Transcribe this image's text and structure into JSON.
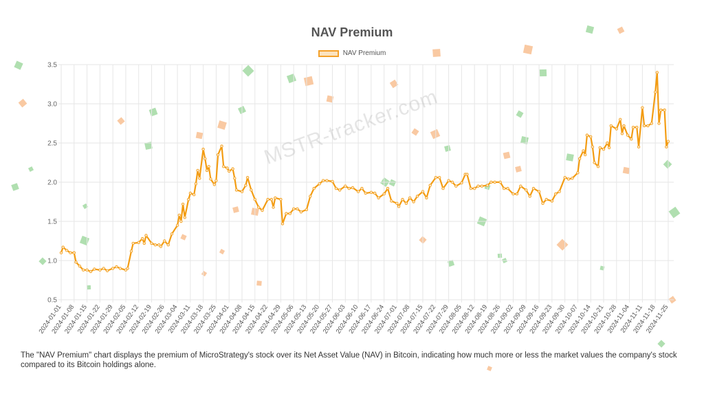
{
  "title": "NAV Premium",
  "watermark": "MSTR-tracker.com",
  "description": "The \"NAV Premium\" chart displays the premium of MicroStrategy's stock over its Net Asset Value (NAV) in Bitcoin, indicating how much more or less the market values the company's stock compared to its Bitcoin holdings alone.",
  "colors": {
    "line": "#f39c12",
    "fill": "#fbe3c0",
    "grid": "#e6e6e6",
    "confetti_green": "#8fd18f",
    "confetti_orange": "#f7b27a"
  },
  "chart_data": {
    "type": "line",
    "title": "NAV Premium",
    "legend": "top-center",
    "grid": true,
    "ylim": [
      0.5,
      3.5
    ],
    "yticks": [
      "0.5",
      "1.0",
      "1.5",
      "2.0",
      "2.5",
      "3.0",
      "3.5"
    ],
    "xticks": [
      "2024-01-01",
      "2024-01-08",
      "2024-01-15",
      "2024-01-22",
      "2024-01-29",
      "2024-02-05",
      "2024-02-12",
      "2024-02-19",
      "2024-02-26",
      "2024-03-04",
      "2024-03-11",
      "2024-03-18",
      "2024-03-25",
      "2024-04-01",
      "2024-04-08",
      "2024-04-15",
      "2024-04-22",
      "2024-04-29",
      "2024-05-06",
      "2024-05-13",
      "2024-05-20",
      "2024-05-27",
      "2024-06-03",
      "2024-06-10",
      "2024-06-17",
      "2024-06-24",
      "2024-07-01",
      "2024-07-08",
      "2024-07-15",
      "2024-07-22",
      "2024-07-29",
      "2024-08-05",
      "2024-08-12",
      "2024-08-19",
      "2024-08-26",
      "2024-09-02",
      "2024-09-09",
      "2024-09-16",
      "2024-09-23",
      "2024-09-30",
      "2024-10-07",
      "2024-10-14",
      "2024-10-21",
      "2024-10-28",
      "2024-11-04",
      "2024-11-11",
      "2024-11-18",
      "2024-11-25"
    ],
    "series": [
      {
        "name": "NAV Premium",
        "points": [
          [
            "2024-01-01",
            1.1
          ],
          [
            "2024-01-02",
            1.17
          ],
          [
            "2024-01-04",
            1.13
          ],
          [
            "2024-01-06",
            1.1
          ],
          [
            "2024-01-08",
            1.1
          ],
          [
            "2024-01-09",
            0.98
          ],
          [
            "2024-01-11",
            0.93
          ],
          [
            "2024-01-13",
            0.88
          ],
          [
            "2024-01-15",
            0.88
          ],
          [
            "2024-01-17",
            0.86
          ],
          [
            "2024-01-19",
            0.89
          ],
          [
            "2024-01-22",
            0.88
          ],
          [
            "2024-01-24",
            0.9
          ],
          [
            "2024-01-26",
            0.87
          ],
          [
            "2024-01-29",
            0.9
          ],
          [
            "2024-01-31",
            0.92
          ],
          [
            "2024-02-02",
            0.9
          ],
          [
            "2024-02-05",
            0.88
          ],
          [
            "2024-02-06",
            0.9
          ],
          [
            "2024-02-08",
            1.12
          ],
          [
            "2024-02-09",
            1.22
          ],
          [
            "2024-02-12",
            1.23
          ],
          [
            "2024-02-14",
            1.28
          ],
          [
            "2024-02-15",
            1.22
          ],
          [
            "2024-02-16",
            1.32
          ],
          [
            "2024-02-19",
            1.22
          ],
          [
            "2024-02-21",
            1.2
          ],
          [
            "2024-02-23",
            1.2
          ],
          [
            "2024-02-24",
            1.18
          ],
          [
            "2024-02-26",
            1.25
          ],
          [
            "2024-02-28",
            1.2
          ],
          [
            "2024-03-01",
            1.34
          ],
          [
            "2024-03-04",
            1.45
          ],
          [
            "2024-03-05",
            1.58
          ],
          [
            "2024-03-06",
            1.5
          ],
          [
            "2024-03-07",
            1.72
          ],
          [
            "2024-03-08",
            1.55
          ],
          [
            "2024-03-10",
            1.78
          ],
          [
            "2024-03-11",
            1.86
          ],
          [
            "2024-03-13",
            1.84
          ],
          [
            "2024-03-14",
            1.98
          ],
          [
            "2024-03-15",
            2.15
          ],
          [
            "2024-03-16",
            2.05
          ],
          [
            "2024-03-18",
            2.42
          ],
          [
            "2024-03-19",
            2.3
          ],
          [
            "2024-03-20",
            2.15
          ],
          [
            "2024-03-21",
            2.2
          ],
          [
            "2024-03-22",
            2.04
          ],
          [
            "2024-03-24",
            1.97
          ],
          [
            "2024-03-25",
            2.02
          ],
          [
            "2024-03-26",
            2.35
          ],
          [
            "2024-03-28",
            2.46
          ],
          [
            "2024-03-29",
            2.2
          ],
          [
            "2024-03-31",
            2.18
          ],
          [
            "2024-04-01",
            2.14
          ],
          [
            "2024-04-03",
            2.17
          ],
          [
            "2024-04-04",
            2.05
          ],
          [
            "2024-04-05",
            1.9
          ],
          [
            "2024-04-08",
            1.88
          ],
          [
            "2024-04-10",
            1.96
          ],
          [
            "2024-04-11",
            2.06
          ],
          [
            "2024-04-13",
            1.9
          ],
          [
            "2024-04-15",
            1.78
          ],
          [
            "2024-04-17",
            1.68
          ],
          [
            "2024-04-19",
            1.64
          ],
          [
            "2024-04-22",
            1.78
          ],
          [
            "2024-04-24",
            1.78
          ],
          [
            "2024-04-25",
            1.68
          ],
          [
            "2024-04-26",
            1.8
          ],
          [
            "2024-04-29",
            1.78
          ],
          [
            "2024-04-30",
            1.47
          ],
          [
            "2024-05-02",
            1.6
          ],
          [
            "2024-05-04",
            1.6
          ],
          [
            "2024-05-06",
            1.66
          ],
          [
            "2024-05-08",
            1.66
          ],
          [
            "2024-05-10",
            1.62
          ],
          [
            "2024-05-13",
            1.65
          ],
          [
            "2024-05-15",
            1.82
          ],
          [
            "2024-05-17",
            1.92
          ],
          [
            "2024-05-20",
            1.98
          ],
          [
            "2024-05-22",
            2.02
          ],
          [
            "2024-05-24",
            2.02
          ],
          [
            "2024-05-27",
            2.01
          ],
          [
            "2024-05-29",
            1.92
          ],
          [
            "2024-05-31",
            1.9
          ],
          [
            "2024-06-03",
            1.95
          ],
          [
            "2024-06-05",
            1.92
          ],
          [
            "2024-06-07",
            1.93
          ],
          [
            "2024-06-10",
            1.88
          ],
          [
            "2024-06-12",
            1.92
          ],
          [
            "2024-06-14",
            1.86
          ],
          [
            "2024-06-17",
            1.87
          ],
          [
            "2024-06-19",
            1.86
          ],
          [
            "2024-06-21",
            1.8
          ],
          [
            "2024-06-24",
            1.85
          ],
          [
            "2024-06-26",
            1.92
          ],
          [
            "2024-06-28",
            1.76
          ],
          [
            "2024-07-01",
            1.73
          ],
          [
            "2024-07-02",
            1.69
          ],
          [
            "2024-07-04",
            1.78
          ],
          [
            "2024-07-06",
            1.73
          ],
          [
            "2024-07-08",
            1.8
          ],
          [
            "2024-07-10",
            1.75
          ],
          [
            "2024-07-12",
            1.82
          ],
          [
            "2024-07-15",
            1.88
          ],
          [
            "2024-07-17",
            1.8
          ],
          [
            "2024-07-19",
            1.96
          ],
          [
            "2024-07-22",
            2.06
          ],
          [
            "2024-07-24",
            2.06
          ],
          [
            "2024-07-26",
            1.92
          ],
          [
            "2024-07-29",
            2.02
          ],
          [
            "2024-07-31",
            2.0
          ],
          [
            "2024-08-02",
            1.95
          ],
          [
            "2024-08-05",
            1.99
          ],
          [
            "2024-08-07",
            2.1
          ],
          [
            "2024-08-08",
            2.1
          ],
          [
            "2024-08-10",
            1.92
          ],
          [
            "2024-08-12",
            1.92
          ],
          [
            "2024-08-14",
            1.95
          ],
          [
            "2024-08-16",
            1.95
          ],
          [
            "2024-08-19",
            1.96
          ],
          [
            "2024-08-21",
            2.0
          ],
          [
            "2024-08-23",
            2.0
          ],
          [
            "2024-08-26",
            2.0
          ],
          [
            "2024-08-28",
            1.92
          ],
          [
            "2024-08-30",
            1.92
          ],
          [
            "2024-09-02",
            1.85
          ],
          [
            "2024-09-04",
            1.85
          ],
          [
            "2024-09-06",
            1.95
          ],
          [
            "2024-09-09",
            1.9
          ],
          [
            "2024-09-11",
            1.82
          ],
          [
            "2024-09-13",
            1.92
          ],
          [
            "2024-09-16",
            1.88
          ],
          [
            "2024-09-18",
            1.73
          ],
          [
            "2024-09-20",
            1.78
          ],
          [
            "2024-09-23",
            1.76
          ],
          [
            "2024-09-25",
            1.85
          ],
          [
            "2024-09-27",
            1.88
          ],
          [
            "2024-09-30",
            2.06
          ],
          [
            "2024-10-02",
            2.04
          ],
          [
            "2024-10-04",
            2.05
          ],
          [
            "2024-10-07",
            2.12
          ],
          [
            "2024-10-08",
            2.3
          ],
          [
            "2024-10-10",
            2.4
          ],
          [
            "2024-10-11",
            2.35
          ],
          [
            "2024-10-12",
            2.6
          ],
          [
            "2024-10-14",
            2.58
          ],
          [
            "2024-10-15",
            2.45
          ],
          [
            "2024-10-16",
            2.25
          ],
          [
            "2024-10-18",
            2.2
          ],
          [
            "2024-10-19",
            2.44
          ],
          [
            "2024-10-21",
            2.42
          ],
          [
            "2024-10-23",
            2.5
          ],
          [
            "2024-10-24",
            2.44
          ],
          [
            "2024-10-25",
            2.72
          ],
          [
            "2024-10-28",
            2.68
          ],
          [
            "2024-10-30",
            2.8
          ],
          [
            "2024-10-31",
            2.62
          ],
          [
            "2024-11-01",
            2.72
          ],
          [
            "2024-11-03",
            2.6
          ],
          [
            "2024-11-05",
            2.55
          ],
          [
            "2024-11-06",
            2.7
          ],
          [
            "2024-11-08",
            2.7
          ],
          [
            "2024-11-09",
            2.45
          ],
          [
            "2024-11-11",
            2.95
          ],
          [
            "2024-11-12",
            2.72
          ],
          [
            "2024-11-14",
            2.72
          ],
          [
            "2024-11-16",
            2.75
          ],
          [
            "2024-11-18",
            3.15
          ],
          [
            "2024-11-19",
            3.4
          ],
          [
            "2024-11-20",
            2.75
          ],
          [
            "2024-11-21",
            2.92
          ],
          [
            "2024-11-23",
            2.92
          ],
          [
            "2024-11-24",
            2.45
          ],
          [
            "2024-11-25",
            2.52
          ]
        ]
      }
    ]
  }
}
